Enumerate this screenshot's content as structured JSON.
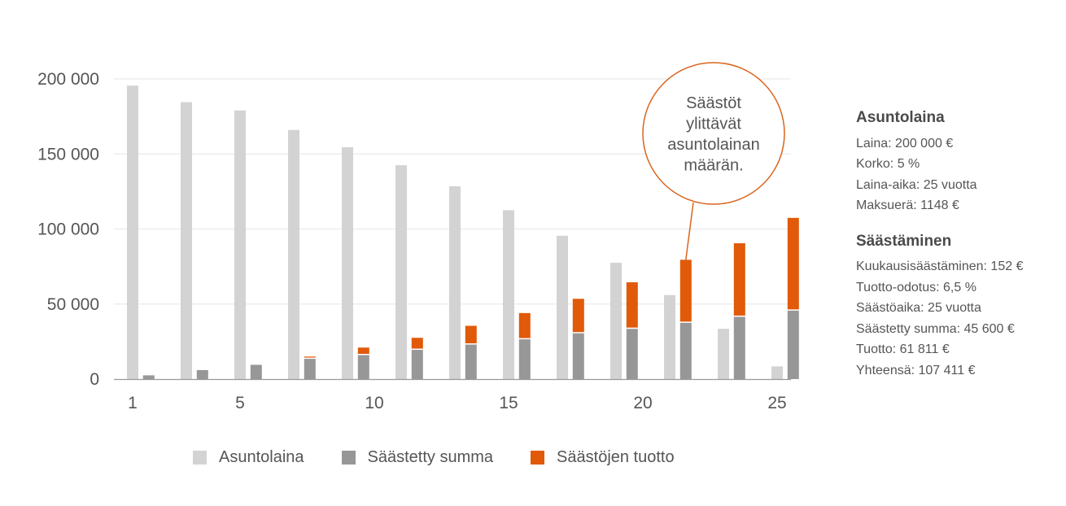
{
  "chart_data": {
    "type": "bar",
    "x": [
      1,
      2,
      3,
      4,
      5,
      6,
      7,
      8,
      9,
      10,
      11,
      12,
      13,
      14,
      15,
      16,
      17,
      18,
      19,
      20,
      21,
      22,
      23,
      24,
      25
    ],
    "x_tick_labels": [
      "1",
      "5",
      "10",
      "15",
      "20",
      "25"
    ],
    "y_tick_labels": [
      "200 000",
      "150 000",
      "100 000",
      "50 000",
      "0"
    ],
    "ylim": [
      0,
      200000
    ],
    "grid": "horizontal",
    "legend_position": "bottom",
    "series": [
      {
        "name": "Asuntolaina",
        "color": "#d3d3d3",
        "x": [
          1,
          3,
          5,
          7,
          9,
          11,
          13,
          15,
          17,
          19,
          21,
          23,
          25
        ],
        "values": [
          195500,
          184500,
          179000,
          166000,
          154500,
          142500,
          128500,
          112500,
          95500,
          77500,
          56000,
          33500,
          8500
        ]
      },
      {
        "name": "Säästetty summa",
        "color": "#979797",
        "x": [
          1.6,
          3.6,
          5.6,
          7.6,
          9.6,
          11.6,
          13.6,
          15.6,
          17.6,
          19.6,
          21.6,
          23.6,
          25.6
        ],
        "values": [
          2500,
          6000,
          9500,
          13500,
          16000,
          19500,
          23000,
          26500,
          30500,
          33500,
          37500,
          41500,
          45600
        ]
      },
      {
        "name": "Säästöjen tuotto",
        "color": "#e05a0a",
        "stacked_on": "Säästetty summa",
        "x": [
          1.6,
          3.6,
          5.6,
          7.6,
          9.6,
          11.6,
          13.6,
          15.6,
          17.6,
          19.6,
          21.6,
          23.6,
          25.6
        ],
        "values": [
          0,
          0,
          0,
          1500,
          5000,
          8000,
          12500,
          17500,
          23000,
          31000,
          42000,
          49000,
          61811
        ]
      }
    ],
    "annotation": {
      "text_lines": [
        "Säästöt",
        "ylittävät",
        "asuntolainan",
        "määrän."
      ],
      "points_to_x": 21.6,
      "border_color": "#d9641e"
    }
  },
  "info": {
    "loan": {
      "title": "Asuntolaina",
      "lines": [
        "Laina: 200 000 €",
        "Korko: 5 %",
        "Laina-aika: 25 vuotta",
        "Maksuerä: 1148 €"
      ]
    },
    "savings": {
      "title": "Säästäminen",
      "lines": [
        "Kuukausisäästäminen: 152 €",
        "Tuotto-odotus: 6,5 %",
        "Säästöaika: 25 vuotta",
        "Säästetty summa: 45 600 €",
        "Tuotto: 61 811 €",
        "Yhteensä: 107 411 €"
      ]
    }
  }
}
